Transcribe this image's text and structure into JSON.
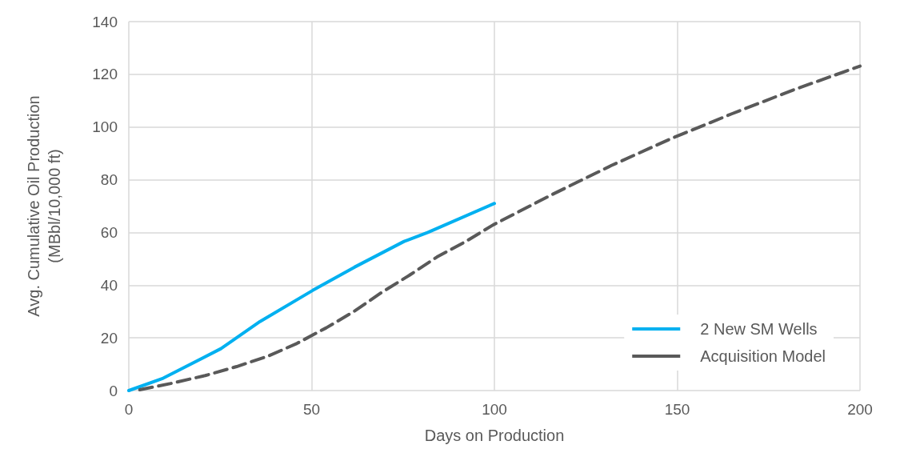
{
  "chart_data": {
    "type": "line",
    "xlabel": "Days on Production",
    "ylabel": "Avg. Cumulative Oil Production\n(MBbl/10,000 ft)",
    "xlim": [
      0,
      200
    ],
    "xticks": [
      0,
      50,
      100,
      150,
      200
    ],
    "ylim": [
      0,
      140
    ],
    "yticks": [
      0,
      20,
      40,
      60,
      80,
      100,
      120,
      140
    ],
    "grid": true,
    "legend": "bottom right",
    "marker": "none",
    "series": [
      {
        "name": "2 New SM Wells",
        "color": "#00b0f0",
        "line_style": "solid",
        "x": [
          0,
          9.4,
          25.2,
          35.9,
          50.3,
          61.7,
          75.3,
          81.8,
          100
        ],
        "values": [
          0,
          4.7,
          15.9,
          26.2,
          38,
          46.8,
          56.6,
          60,
          71
        ]
      },
      {
        "name": "Acquisition Model",
        "color": "#595959",
        "line_style": "dashed",
        "x": [
          3,
          11.5,
          20.9,
          29.5,
          38,
          46,
          54,
          61.7,
          68.9,
          76.8,
          84.3,
          92.2,
          99.7,
          115.5,
          132,
          148.5,
          164.9,
          182.2,
          200
        ],
        "values": [
          0.3,
          2.7,
          5.7,
          9.1,
          13,
          17.9,
          23.8,
          30.1,
          37,
          43.8,
          50.7,
          56.6,
          62.9,
          74.2,
          85.4,
          95.7,
          105,
          114.3,
          123.1
        ]
      }
    ]
  }
}
